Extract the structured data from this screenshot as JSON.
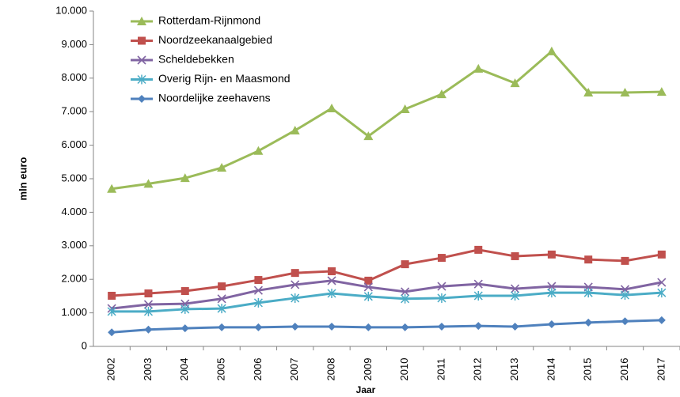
{
  "chart_data": {
    "type": "line",
    "y_label": "mln euro",
    "x_label": "Jaar",
    "categories": [
      "2002",
      "2003",
      "2004",
      "2005",
      "2006",
      "2007",
      "2008",
      "2009",
      "2010",
      "2011",
      "2012",
      "2013",
      "2014",
      "2015",
      "2016",
      "2017"
    ],
    "ylim": [
      0,
      10000
    ],
    "yticks": [
      0,
      {
        "value": 1000,
        "label": "1.000"
      },
      {
        "value": 2000,
        "label": "2.000"
      },
      {
        "value": 3000,
        "label": "3.000"
      },
      {
        "value": 4000,
        "label": "4.000"
      },
      {
        "value": 5000,
        "label": "5.000"
      },
      {
        "value": 6000,
        "label": "6.000"
      },
      {
        "value": 7000,
        "label": "7.000"
      },
      {
        "value": 8000,
        "label": "8.000"
      },
      {
        "value": 9000,
        "label": "9.000"
      },
      {
        "value": 10000,
        "label": "10.000"
      }
    ],
    "grid": false,
    "legend": "upper-left",
    "series": [
      {
        "name": "Rotterdam-Rijnmond",
        "color": "#9bbb59",
        "marker": "triangle",
        "values": [
          4700,
          4850,
          5020,
          5330,
          5830,
          6440,
          7100,
          6270,
          7075,
          7520,
          8280,
          7850,
          8800,
          7570,
          7570,
          7590
        ]
      },
      {
        "name": "Noordzeekanaalgebied",
        "color": "#c0504d",
        "marker": "square",
        "values": [
          1510,
          1580,
          1650,
          1790,
          1980,
          2190,
          2240,
          1960,
          2450,
          2640,
          2880,
          2690,
          2740,
          2590,
          2550,
          2740
        ]
      },
      {
        "name": "Scheldebekken",
        "color": "#8064a2",
        "marker": "x",
        "values": [
          1130,
          1250,
          1270,
          1420,
          1670,
          1840,
          1960,
          1770,
          1630,
          1790,
          1860,
          1720,
          1790,
          1770,
          1700,
          1910
        ]
      },
      {
        "name": "Overig Rijn- en Maasmond",
        "color": "#4bacc6",
        "marker": "star",
        "values": [
          1040,
          1040,
          1110,
          1130,
          1300,
          1440,
          1580,
          1490,
          1420,
          1440,
          1510,
          1510,
          1600,
          1600,
          1530,
          1600
        ]
      },
      {
        "name": "Noordelijke zeehavens",
        "color": "#4f81bd",
        "marker": "diamond",
        "values": [
          420,
          500,
          540,
          570,
          570,
          590,
          590,
          570,
          570,
          590,
          610,
          590,
          660,
          710,
          750,
          780
        ]
      }
    ]
  }
}
